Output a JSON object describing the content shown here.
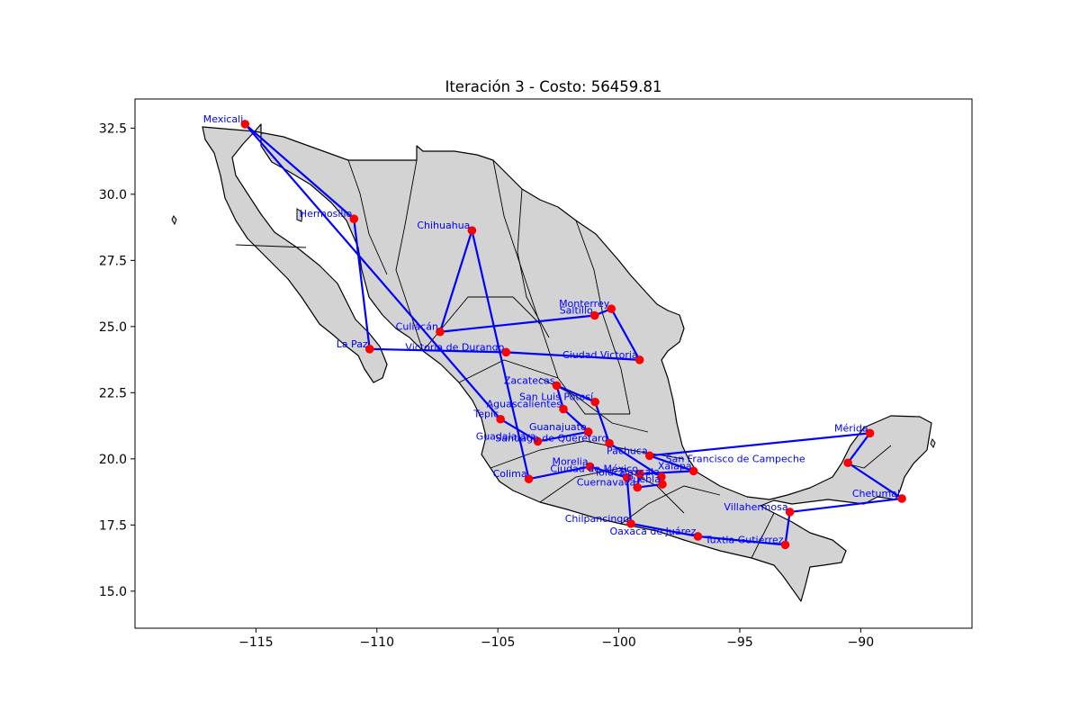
{
  "chart_data": {
    "type": "scatter",
    "title": "Iteración 3 - Costo: 56459.81",
    "xlabel": "",
    "ylabel": "",
    "xlim": [
      -120.0,
      -85.4
    ],
    "ylim": [
      13.6,
      33.6
    ],
    "xticks": [
      -115,
      -110,
      -105,
      -100,
      -95,
      -90
    ],
    "xtick_labels": [
      "−115",
      "−110",
      "−105",
      "−100",
      "−95",
      "−90"
    ],
    "yticks": [
      15.0,
      17.5,
      20.0,
      22.5,
      25.0,
      27.5,
      30.0,
      32.5
    ],
    "ytick_labels": [
      "15.0",
      "17.5",
      "20.0",
      "22.5",
      "25.0",
      "27.5",
      "30.0",
      "32.5"
    ],
    "grid": false,
    "colors": {
      "point": "#ff0000",
      "route": "#0000ff",
      "label": "#0000ff",
      "land": "#d3d3d3",
      "border": "#000000"
    },
    "cities": [
      {
        "name": "Mexicali",
        "x": -115.45,
        "y": 32.65
      },
      {
        "name": "Hermosillo",
        "x": -110.95,
        "y": 29.07
      },
      {
        "name": "La Paz",
        "x": -110.3,
        "y": 24.15
      },
      {
        "name": "Victoria de Durango",
        "x": -104.66,
        "y": 24.03
      },
      {
        "name": "Ciudad Victoria",
        "x": -99.14,
        "y": 23.74
      },
      {
        "name": "Monterrey",
        "x": -100.31,
        "y": 25.67
      },
      {
        "name": "Saltillo",
        "x": -101.0,
        "y": 25.42
      },
      {
        "name": "Culiacán",
        "x": -107.39,
        "y": 24.8
      },
      {
        "name": "Chihuahua",
        "x": -106.07,
        "y": 28.63
      },
      {
        "name": "Zacatecas",
        "x": -102.57,
        "y": 22.77
      },
      {
        "name": "San Luis Potosí",
        "x": -100.98,
        "y": 22.15
      },
      {
        "name": "Aguascalientes",
        "x": -102.29,
        "y": 21.88
      },
      {
        "name": "Tepic",
        "x": -104.89,
        "y": 21.5
      },
      {
        "name": "Guadalajara",
        "x": -103.35,
        "y": 20.66
      },
      {
        "name": "Guanajuato",
        "x": -101.26,
        "y": 21.02
      },
      {
        "name": "Santiago de Querétaro",
        "x": -100.39,
        "y": 20.59
      },
      {
        "name": "Pachuca",
        "x": -98.73,
        "y": 20.12
      },
      {
        "name": "Morelia",
        "x": -101.19,
        "y": 19.71
      },
      {
        "name": "Colima",
        "x": -103.72,
        "y": 19.24
      },
      {
        "name": "Toluca",
        "x": -99.66,
        "y": 19.29
      },
      {
        "name": "Ciudad de México",
        "x": -99.13,
        "y": 19.43
      },
      {
        "name": "Tlaxcala",
        "x": -98.24,
        "y": 19.32
      },
      {
        "name": "Puebla",
        "x": -98.2,
        "y": 19.04
      },
      {
        "name": "Cuernavaca",
        "x": -99.23,
        "y": 18.92
      },
      {
        "name": "Xalapa",
        "x": -96.91,
        "y": 19.54
      },
      {
        "name": "Chilpancingo",
        "x": -99.5,
        "y": 17.55
      },
      {
        "name": "Oaxaca de Juárez",
        "x": -96.73,
        "y": 17.07
      },
      {
        "name": "Tuxtla Gutiérrez",
        "x": -93.12,
        "y": 16.75
      },
      {
        "name": "Villahermosa",
        "x": -92.93,
        "y": 17.99
      },
      {
        "name": "Chetumal",
        "x": -88.3,
        "y": 18.5
      },
      {
        "name": "Mérida",
        "x": -89.62,
        "y": 20.97
      },
      {
        "name": "San Francisco de Campeche",
        "x": -90.53,
        "y": 19.85
      }
    ],
    "route": [
      "Mexicali",
      "Hermosillo",
      "La Paz",
      "Victoria de Durango",
      "Ciudad Victoria",
      "Monterrey",
      "Saltillo",
      "Culiacán",
      "Chihuahua",
      "Colima",
      "Morelia",
      "Toluca",
      "Chilpancingo",
      "Oaxaca de Juárez",
      "Tuxtla Gutiérrez",
      "Villahermosa",
      "Chetumal",
      "San Francisco de Campeche",
      "Mérida",
      "Pachuca",
      "Xalapa",
      "Ciudad de México",
      "Cuernavaca",
      "Puebla",
      "Tlaxcala",
      "Santiago de Querétaro",
      "San Luis Potosí",
      "Zacatecas",
      "Aguascalientes",
      "Guanajuato",
      "Guadalajara",
      "Tepic",
      "Mexicali"
    ]
  }
}
